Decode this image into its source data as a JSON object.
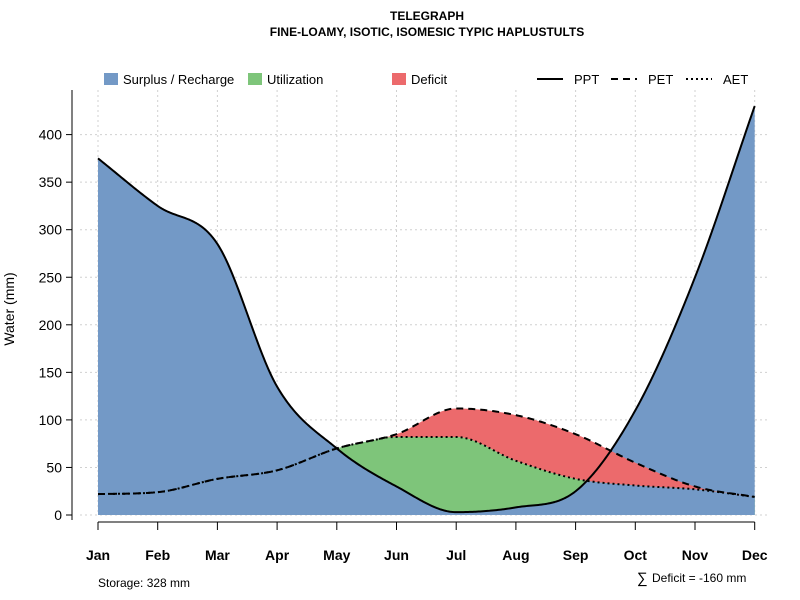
{
  "chart_data": {
    "type": "area",
    "title": "TELEGRAPH",
    "subtitle": "FINE-LOAMY, ISOTIC, ISOMESIC TYPIC HAPLUSTULTS",
    "xlabel": "",
    "ylabel": "Water (mm)",
    "categories": [
      "Jan",
      "Feb",
      "Mar",
      "Apr",
      "May",
      "Jun",
      "Jul",
      "Aug",
      "Sep",
      "Oct",
      "Nov",
      "Dec"
    ],
    "ylim": [
      0,
      430
    ],
    "yticks": [
      0,
      50,
      100,
      150,
      200,
      250,
      300,
      350,
      400
    ],
    "grid": true,
    "series": [
      {
        "name": "PPT",
        "style": "solid",
        "values": [
          375,
          325,
          285,
          135,
          70,
          30,
          3,
          8,
          25,
          110,
          250,
          430
        ]
      },
      {
        "name": "PET",
        "style": "dashed",
        "values": [
          22,
          24,
          38,
          47,
          70,
          85,
          112,
          105,
          85,
          55,
          30,
          19
        ]
      },
      {
        "name": "AET",
        "style": "dotted",
        "values": [
          22,
          24,
          38,
          47,
          70,
          82,
          82,
          57,
          38,
          31,
          27,
          19
        ]
      }
    ],
    "fills": [
      {
        "name": "Surplus / Recharge",
        "color": "#7399C6"
      },
      {
        "name": "Utilization",
        "color": "#7EC57A"
      },
      {
        "name": "Deficit",
        "color": "#EC6A6C"
      }
    ],
    "legend_position": "top",
    "annotations": {
      "storage": "Storage: 328 mm",
      "deficit_symbol": "∑",
      "deficit": "Deficit = -160 mm"
    }
  }
}
